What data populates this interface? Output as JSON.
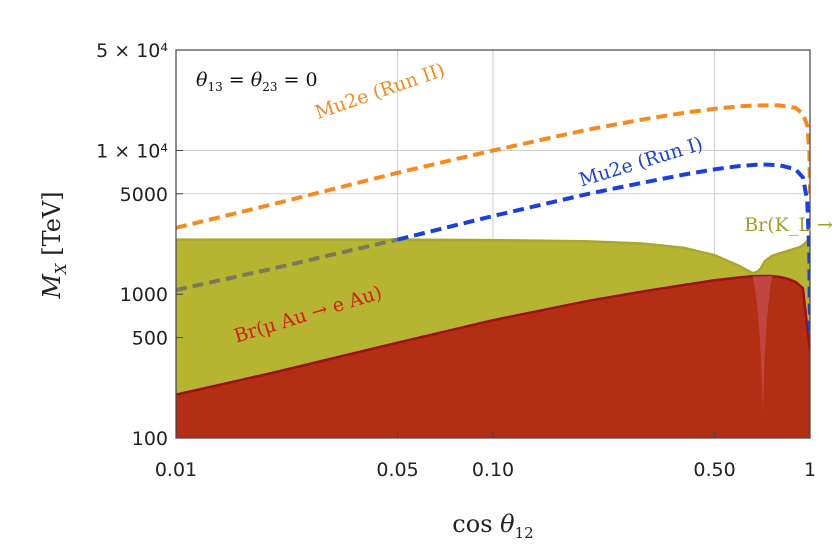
{
  "chart_data": {
    "type": "area",
    "title": "",
    "xlabel": "cos θ12",
    "ylabel": "M_X [TeV]",
    "xscale": "log",
    "yscale": "log",
    "xlim": [
      0.01,
      1
    ],
    "ylim": [
      100,
      50000
    ],
    "x_ticks": [
      {
        "value": 0.01,
        "label": "0.01"
      },
      {
        "value": 0.05,
        "label": "0.05"
      },
      {
        "value": 0.1,
        "label": "0.10"
      },
      {
        "value": 0.5,
        "label": "0.50"
      },
      {
        "value": 1,
        "label": "1"
      }
    ],
    "y_ticks": [
      {
        "value": 100,
        "label": "100"
      },
      {
        "value": 500,
        "label": "500"
      },
      {
        "value": 1000,
        "label": "1000"
      },
      {
        "value": 5000,
        "label": "5000"
      },
      {
        "value": 10000,
        "label": "1 × 10⁴"
      },
      {
        "value": 50000,
        "label": "5 × 10⁴"
      }
    ],
    "grid": true,
    "annotation_condition": "θ13 = θ23 = 0",
    "series": [
      {
        "name": "Br(K_L → μ± e∓)",
        "kind": "filled-region",
        "color": "#b5b531",
        "edge_color": "#a8a830",
        "x": [
          0.01,
          0.05,
          0.1,
          0.2,
          0.3,
          0.4,
          0.5,
          0.6,
          0.64,
          0.66,
          0.68,
          0.7,
          0.72,
          0.76,
          0.82,
          0.88,
          0.93,
          0.97,
          1.0
        ],
        "y": [
          2400,
          2400,
          2380,
          2330,
          2250,
          2100,
          1870,
          1570,
          1450,
          1400,
          1430,
          1520,
          1700,
          1850,
          1950,
          2050,
          2130,
          2280,
          2500
        ]
      },
      {
        "name": "Br(μ Au → e Au)",
        "kind": "filled-region",
        "color": "#b22e14",
        "edge_color": "#9e1010",
        "x": [
          0.01,
          0.02,
          0.05,
          0.1,
          0.2,
          0.3,
          0.4,
          0.5,
          0.6,
          0.65,
          0.7,
          0.75,
          0.8,
          0.85,
          0.9,
          0.95,
          1.0
        ],
        "y": [
          200,
          283,
          460,
          660,
          900,
          1050,
          1160,
          1250,
          1310,
          1330,
          1340,
          1340,
          1320,
          1280,
          1220,
          1100,
          400
        ]
      },
      {
        "name": "Mu2e (Run I)",
        "kind": "dashed-line",
        "color": "#1a3fe0",
        "x": [
          0.05,
          0.1,
          0.2,
          0.3,
          0.4,
          0.5,
          0.6,
          0.7,
          0.8,
          0.9,
          0.95,
          0.98,
          0.995,
          1.0
        ],
        "y": [
          2400,
          3500,
          5000,
          6000,
          6800,
          7400,
          7800,
          8000,
          7900,
          7400,
          6500,
          4500,
          2000,
          500
        ]
      },
      {
        "name": "",
        "kind": "dashed-line-hidden-part",
        "color": "#7a7a58",
        "x": [
          0.01,
          0.02,
          0.03,
          0.05
        ],
        "y": [
          1070,
          1500,
          1850,
          2400
        ]
      },
      {
        "name": "Mu2e (Run II)",
        "kind": "dashed-line",
        "color": "#f58a1e",
        "x": [
          0.01,
          0.02,
          0.05,
          0.1,
          0.2,
          0.3,
          0.4,
          0.5,
          0.6,
          0.7,
          0.8,
          0.9,
          0.95,
          0.98,
          0.995,
          1.0
        ],
        "y": [
          2900,
          4200,
          7000,
          10000,
          14000,
          16500,
          18300,
          19500,
          20300,
          20600,
          20600,
          19800,
          18000,
          15000,
          10000,
          5000
        ]
      }
    ],
    "labels": [
      {
        "text": "Mu2e (Run II)",
        "color": "#f58a1e",
        "x": 0.028,
        "y": 16500,
        "angle": -19
      },
      {
        "text": "Mu2e (Run I)",
        "color": "#1a3fe0",
        "x": 0.19,
        "y": 5600,
        "angle": -17
      },
      {
        "text": "Br(K_L → μ± e∓)",
        "color": "#a0a028",
        "x": 0.62,
        "y": 2750,
        "angle": 0
      },
      {
        "text": "Br(μ Au → e Au)",
        "color": "#d01e0a",
        "x": 0.0155,
        "y": 460,
        "angle": -17
      }
    ]
  }
}
